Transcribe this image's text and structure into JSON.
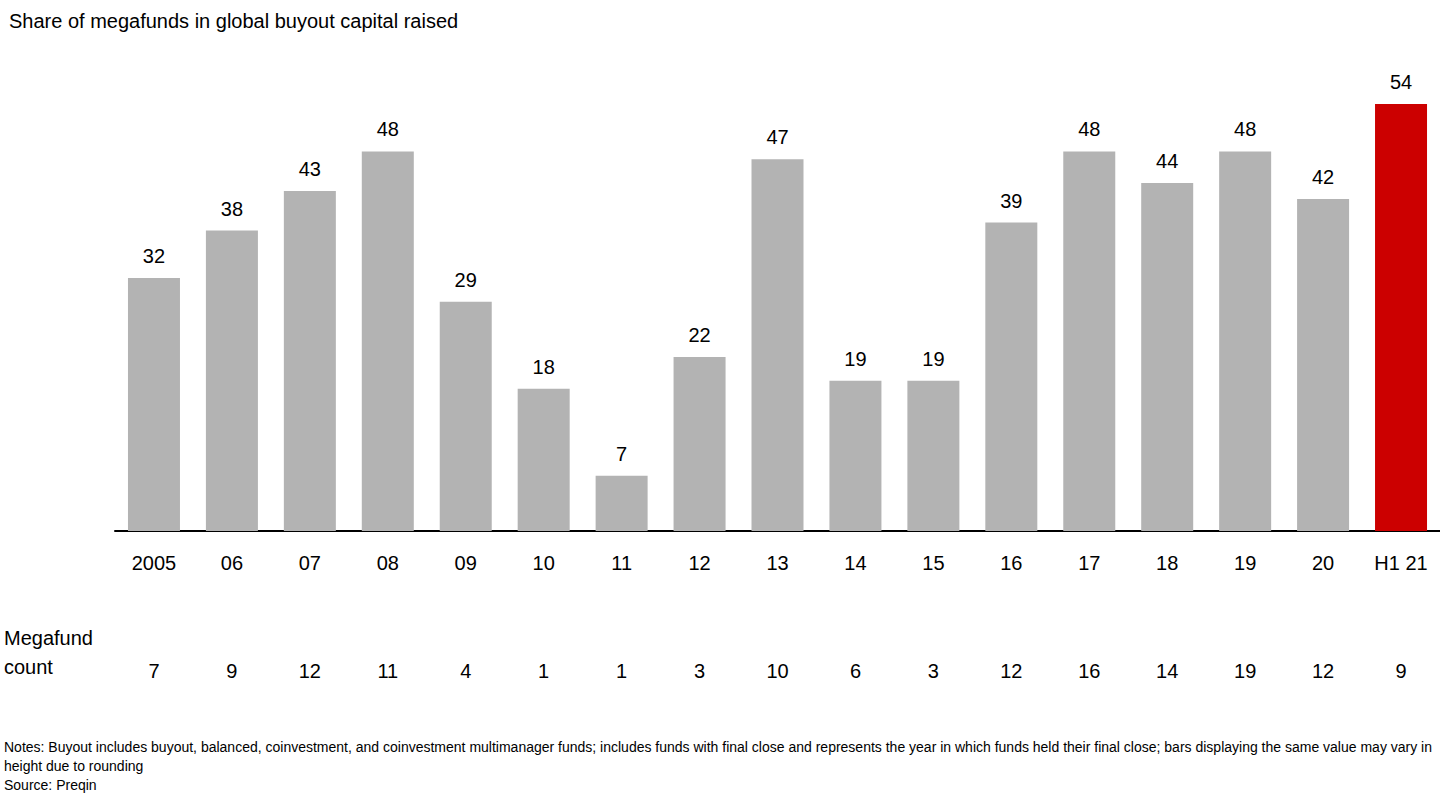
{
  "chart_data": {
    "type": "bar",
    "title": "Share of megafunds in global buyout capital raised",
    "categories": [
      "2005",
      "06",
      "07",
      "08",
      "09",
      "10",
      "11",
      "12",
      "13",
      "14",
      "15",
      "16",
      "17",
      "18",
      "19",
      "20",
      "H1 21"
    ],
    "values": [
      32,
      38,
      43,
      48,
      29,
      18,
      7,
      22,
      47,
      19,
      19,
      39,
      48,
      44,
      48,
      42,
      54
    ],
    "colors": [
      "#b3b3b3",
      "#b3b3b3",
      "#b3b3b3",
      "#b3b3b3",
      "#b3b3b3",
      "#b3b3b3",
      "#b3b3b3",
      "#b3b3b3",
      "#b3b3b3",
      "#b3b3b3",
      "#b3b3b3",
      "#b3b3b3",
      "#b3b3b3",
      "#b3b3b3",
      "#b3b3b3",
      "#b3b3b3",
      "#cc0000"
    ],
    "ylim": [
      0,
      54
    ],
    "grid": false,
    "data_labels": true,
    "tick_labels": "x",
    "megafund_count": {
      "label": "Megafund count",
      "values": [
        7,
        9,
        12,
        11,
        4,
        1,
        1,
        3,
        10,
        6,
        3,
        12,
        16,
        14,
        19,
        12,
        9
      ]
    },
    "notes": "Notes: Buyout includes buyout, balanced, coinvestment, and coinvestment multimanager funds; includes funds with final close and represents the year in which funds held their final close; bars displaying the same value may vary in height due to rounding",
    "source": "Source: Preqin"
  }
}
